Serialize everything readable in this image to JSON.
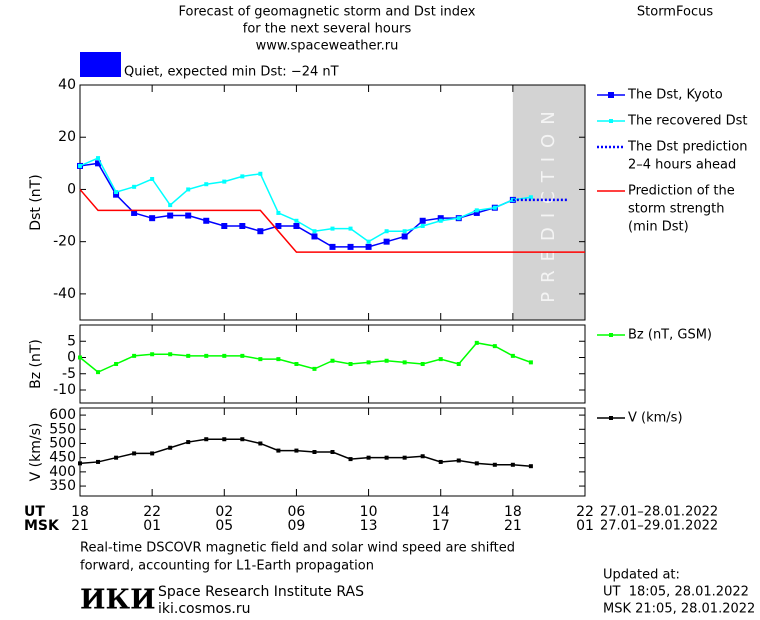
{
  "header": {
    "title": [
      "Forecast of geomagnetic storm and Dst index",
      "for the next several hours",
      "www.spaceweather.ru"
    ],
    "brand": "StormFocus",
    "status": "Quiet, expected min Dst: −24 nT",
    "status_color": "#0000ff"
  },
  "chart_data": [
    {
      "type": "line",
      "y_label": "Dst (nT)",
      "xlim": [
        0,
        28
      ],
      "ylim": [
        -50,
        40
      ],
      "yticks": [
        -40,
        -20,
        0,
        20,
        40
      ],
      "shade": {
        "x": [
          24,
          28
        ],
        "label": "PREDICTION",
        "color": "#d3d3d3"
      },
      "series": [
        {
          "name": [
            "The Dst, Kyoto"
          ],
          "color": "#0000ff",
          "marker": "big",
          "x": [
            0,
            1,
            2,
            3,
            4,
            5,
            6,
            7,
            8,
            9,
            10,
            11,
            12,
            13,
            14,
            15,
            16,
            17,
            18,
            19,
            20,
            21,
            22,
            23,
            24
          ],
          "values": [
            9,
            10,
            -2,
            -9,
            -11,
            -10,
            -10,
            -12,
            -14,
            -14,
            -16,
            -14,
            -14,
            -18,
            -22,
            -22,
            -22,
            -20,
            -18,
            -12,
            -11,
            -11,
            -9,
            -7,
            -4
          ]
        },
        {
          "name": [
            "The recovered Dst"
          ],
          "color": "#00ffff",
          "marker": "small",
          "x": [
            0,
            1,
            2,
            3,
            4,
            5,
            6,
            7,
            8,
            9,
            10,
            11,
            12,
            13,
            14,
            15,
            16,
            17,
            18,
            19,
            20,
            21,
            22,
            23,
            24,
            25
          ],
          "values": [
            9,
            12,
            -1,
            1,
            4,
            -6,
            0,
            2,
            3,
            5,
            6,
            -9,
            -12,
            -16,
            -15,
            -15,
            -20,
            -16,
            -16,
            -14,
            -12,
            -11,
            -8,
            -7,
            -4,
            -3
          ]
        },
        {
          "name": [
            "The Dst prediction",
            "2–4 hours ahead"
          ],
          "color": "#0000ff",
          "dash": true,
          "x": [
            24,
            27
          ],
          "values": [
            -4,
            -4
          ]
        },
        {
          "name": [
            "Prediction of the",
            "storm strength",
            "(min Dst)"
          ],
          "color": "#ff0000",
          "x": [
            0,
            1,
            10,
            12,
            28
          ],
          "values": [
            0,
            -8,
            -8,
            -24,
            -24
          ]
        }
      ]
    },
    {
      "type": "line",
      "y_label": "Bz (nT)",
      "xlim": [
        0,
        28
      ],
      "ylim": [
        -14,
        10
      ],
      "yticks": [
        -10,
        -5,
        0,
        5
      ],
      "series": [
        {
          "name": [
            "Bz (nT, GSM)"
          ],
          "color": "#00ff00",
          "marker": "small",
          "x": [
            0,
            1,
            2,
            3,
            4,
            5,
            6,
            7,
            8,
            9,
            10,
            11,
            12,
            13,
            14,
            15,
            16,
            17,
            18,
            19,
            20,
            21,
            22,
            23,
            24,
            25
          ],
          "values": [
            0,
            -4.5,
            -2,
            0.5,
            1,
            1,
            0.5,
            0.5,
            0.5,
            0.5,
            -0.5,
            -0.5,
            -2,
            -3.5,
            -1,
            -2,
            -1.5,
            -1,
            -1.5,
            -2,
            -0.5,
            -2,
            4.5,
            3.5,
            0.5,
            -1.5
          ]
        }
      ]
    },
    {
      "type": "line",
      "y_label": "V (km/s)",
      "xlim": [
        0,
        28
      ],
      "ylim": [
        315,
        625
      ],
      "yticks": [
        350,
        400,
        450,
        500,
        550,
        600
      ],
      "x_label": "UT",
      "x2_label": "MSK",
      "xticks": [
        {
          "value": 0,
          "label": "18"
        },
        {
          "value": 4,
          "label": "22"
        },
        {
          "value": 8,
          "label": "02"
        },
        {
          "value": 12,
          "label": "06"
        },
        {
          "value": 16,
          "label": "10"
        },
        {
          "value": 20,
          "label": "14"
        },
        {
          "value": 24,
          "label": "18"
        },
        {
          "value": 28,
          "label": "22"
        }
      ],
      "x2ticks": [
        {
          "value": 0,
          "label": "21"
        },
        {
          "value": 4,
          "label": "01"
        },
        {
          "value": 8,
          "label": "05"
        },
        {
          "value": 12,
          "label": "09"
        },
        {
          "value": 16,
          "label": "13"
        },
        {
          "value": 20,
          "label": "17"
        },
        {
          "value": 24,
          "label": "21"
        },
        {
          "value": 28,
          "label": "01"
        }
      ],
      "x_range_label": "27.01–28.01.2022",
      "x2_range_label": "27.01–29.01.2022",
      "series": [
        {
          "name": [
            "V (km/s)"
          ],
          "color": "#000000",
          "marker": "small",
          "x": [
            0,
            1,
            2,
            3,
            4,
            5,
            6,
            7,
            8,
            9,
            10,
            11,
            12,
            13,
            14,
            15,
            16,
            17,
            18,
            19,
            20,
            21,
            22,
            23,
            24,
            25
          ],
          "values": [
            430,
            435,
            450,
            465,
            465,
            485,
            505,
            515,
            515,
            515,
            500,
            475,
            475,
            470,
            470,
            445,
            450,
            450,
            450,
            455,
            435,
            440,
            430,
            425,
            425,
            420
          ]
        }
      ]
    }
  ],
  "footer": {
    "note": [
      "Real-time DSCOVR magnetic field and solar wind speed are shifted",
      "forward, accounting for L1-Earth propagation"
    ],
    "updated": [
      "Updated at:",
      "UT  18:05, 28.01.2022",
      "MSK 21:05, 28.01.2022"
    ],
    "logo": "ИКИ",
    "institute": "Space Research Institute RAS",
    "site": "iki.cosmos.ru"
  }
}
